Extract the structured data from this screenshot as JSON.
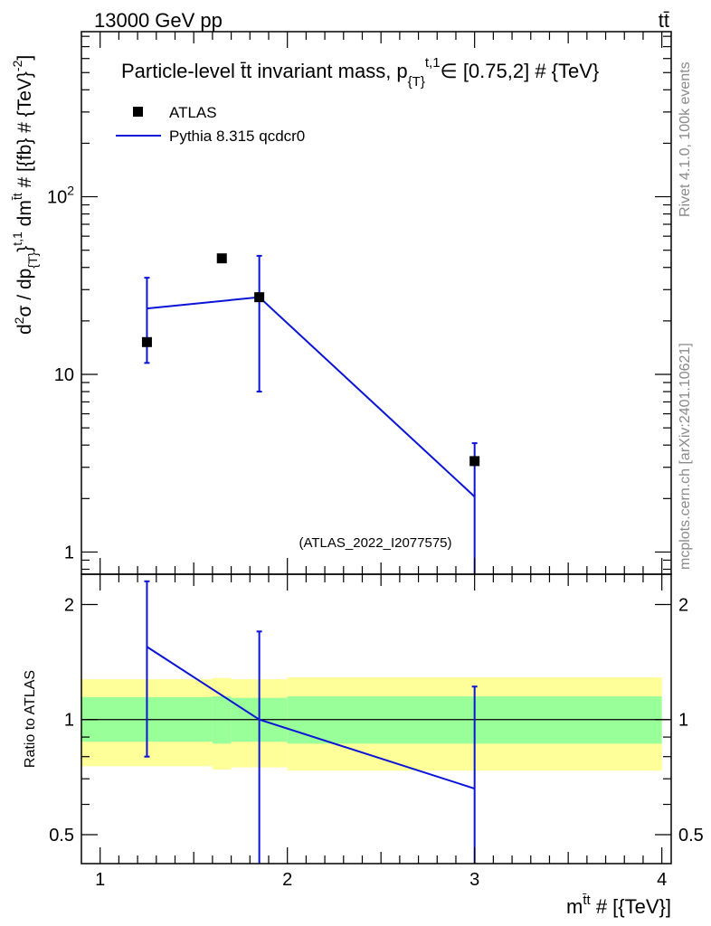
{
  "header": {
    "left": "13000 GeV pp",
    "right": "tt̄"
  },
  "side_labels": {
    "rivet": "Rivet 4.1.0,  100k events",
    "mcplots": "mcplots.cern.ch [arXiv:2401.10621]"
  },
  "chart_data": [
    {
      "type": "scatter",
      "panel": "main",
      "title_main": "Particle-level t̄t invariant mass, p",
      "title_sub": "{T}",
      "title_sup": "t,1",
      "title_rest": "∈ [0.75,2] # {TeV}",
      "ylabel": "d²σ / dp{T}t,1 dm tt̄ # [{fb} # {TeV}⁻²]",
      "ylabel_parts": {
        "d2": "d",
        "sup2": "2",
        "sigma": "σ / dp",
        "sub_t": "{T}",
        "sup_t1": "}",
        "t1": "t,1",
        "dm": " dm",
        "sup_tt": "t̄t",
        "units": " # [{fb} # {TeV}",
        "sup_m2": "-2",
        "close": "]"
      },
      "yscale": "log",
      "ylim": [
        0.75,
        850
      ],
      "xlim": [
        0.9,
        4.05
      ],
      "y_ticks": [
        {
          "value": 1,
          "label": "1"
        },
        {
          "value": 10,
          "label": "10"
        },
        {
          "value": 100,
          "label": "10",
          "sup": "2"
        }
      ],
      "watermark": "(ATLAS_2022_I2077575)",
      "legend": {
        "position": "top-left",
        "entries": [
          {
            "label": "ATLAS",
            "style": "marker"
          },
          {
            "label": "Pythia 8.315 qcdcr0",
            "style": "line"
          }
        ]
      },
      "series": [
        {
          "name": "ATLAS",
          "points": [
            {
              "x": 1.25,
              "y": 15.2
            },
            {
              "x": 1.65,
              "y": 45.0
            },
            {
              "x": 1.85,
              "y": 27.2
            },
            {
              "x": 3.0,
              "y": 3.25
            }
          ]
        },
        {
          "name": "Pythia 8.315 qcdcr0",
          "points": [
            {
              "x": 1.25,
              "y": 23.5,
              "err_low": 11.6,
              "err_high": 35.0
            },
            {
              "x": 1.85,
              "y": 27.2,
              "err_low": 8.0,
              "err_high": 46.5
            },
            {
              "x": 3.0,
              "y": 2.05,
              "err_low": 0.5,
              "err_high": 4.1
            }
          ]
        }
      ]
    },
    {
      "type": "line",
      "panel": "ratio",
      "ylabel": "Ratio to ATLAS",
      "xlabel_main": "m",
      "xlabel_sup": "t̄t",
      "xlabel_rest": " # [{TeV}]",
      "yscale": "log",
      "ylim": [
        0.42,
        2.4
      ],
      "xlim": [
        0.9,
        4.05
      ],
      "x_ticks": [
        {
          "value": 1,
          "label": "1"
        },
        {
          "value": 2,
          "label": "2"
        },
        {
          "value": 3,
          "label": "3"
        },
        {
          "value": 4,
          "label": "4"
        }
      ],
      "y_ticks": [
        {
          "value": 0.5,
          "label": "0.5"
        },
        {
          "value": 1,
          "label": "1"
        },
        {
          "value": 2,
          "label": "2"
        }
      ],
      "bands": [
        {
          "x0": 0.9,
          "x1": 1.6,
          "yellow": [
            0.755,
            1.275
          ],
          "green": [
            0.875,
            1.145
          ]
        },
        {
          "x0": 1.6,
          "x1": 1.7,
          "yellow": [
            0.74,
            1.285
          ],
          "green": [
            0.865,
            1.15
          ]
        },
        {
          "x0": 1.7,
          "x1": 2.0,
          "yellow": [
            0.75,
            1.275
          ],
          "green": [
            0.875,
            1.14
          ]
        },
        {
          "x0": 2.0,
          "x1": 4.0,
          "yellow": [
            0.735,
            1.29
          ],
          "green": [
            0.865,
            1.15
          ]
        }
      ],
      "series": [
        {
          "name": "Pythia 8.315 qcdcr0",
          "points": [
            {
              "x": 1.25,
              "y": 1.55,
              "err_low": 0.8,
              "err_high": 2.3
            },
            {
              "x": 1.85,
              "y": 1.0,
              "err_low": 0.3,
              "err_high": 1.7
            },
            {
              "x": 3.0,
              "y": 0.66,
              "err_low": 0.3,
              "err_high": 1.22
            }
          ]
        }
      ]
    }
  ],
  "colors": {
    "atlas": "#000000",
    "pythia": "#0a14d6",
    "band_yellow": "#ffff99",
    "band_green": "#99ff99",
    "axis": "#000000",
    "side_text": "#8a8a8a",
    "watermark": "#a0a0a0"
  }
}
